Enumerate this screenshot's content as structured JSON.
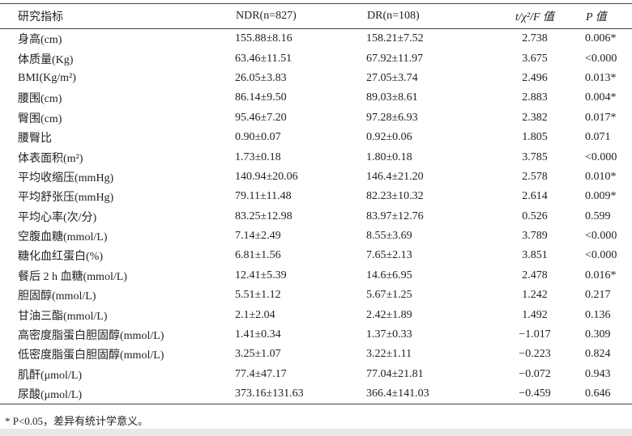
{
  "table": {
    "header": [
      "研究指标",
      "NDR(n=827)",
      "DR(n=108)",
      "t/χ²/F 值",
      "P 值"
    ],
    "rows": [
      [
        "身高(cm)",
        "155.88±8.16",
        "158.21±7.52",
        "2.738",
        "0.006*"
      ],
      [
        "体质量(Kg)",
        "63.46±11.51",
        "67.92±11.97",
        "3.675",
        "<0.000"
      ],
      [
        "BMI(Kg/m²)",
        "26.05±3.83",
        "27.05±3.74",
        "2.496",
        "0.013*"
      ],
      [
        "腰围(cm)",
        "86.14±9.50",
        "89.03±8.61",
        "2.883",
        "0.004*"
      ],
      [
        "臀围(cm)",
        "95.46±7.20",
        "97.28±6.93",
        "2.382",
        "0.017*"
      ],
      [
        "腰臀比",
        "0.90±0.07",
        "0.92±0.06",
        "1.805",
        "0.071"
      ],
      [
        "体表面积(m²)",
        "1.73±0.18",
        "1.80±0.18",
        "3.785",
        "<0.000"
      ],
      [
        "平均收缩压(mmHg)",
        "140.94±20.06",
        "146.4±21.20",
        "2.578",
        "0.010*"
      ],
      [
        "平均舒张压(mmHg)",
        "79.11±11.48",
        "82.23±10.32",
        "2.614",
        "0.009*"
      ],
      [
        "平均心率(次/分)",
        "83.25±12.98",
        "83.97±12.76",
        "0.526",
        "0.599"
      ],
      [
        "空腹血糖(mmol/L)",
        "7.14±2.49",
        "8.55±3.69",
        "3.789",
        "<0.000"
      ],
      [
        "糖化血红蛋白(%)",
        "6.81±1.56",
        "7.65±2.13",
        "3.851",
        "<0.000"
      ],
      [
        "餐后 2 h 血糖(mmol/L)",
        "12.41±5.39",
        "14.6±6.95",
        "2.478",
        "0.016*"
      ],
      [
        "胆固醇(mmol/L)",
        "5.51±1.12",
        "5.67±1.25",
        "1.242",
        "0.217"
      ],
      [
        "甘油三酯(mmol/L)",
        "2.1±2.04",
        "2.42±1.89",
        "1.492",
        "0.136"
      ],
      [
        "高密度脂蛋白胆固醇(mmol/L)",
        "1.41±0.34",
        "1.37±0.33",
        "−1.017",
        "0.309"
      ],
      [
        "低密度脂蛋白胆固醇(mmol/L)",
        "3.25±1.07",
        "3.22±1.11",
        "−0.223",
        "0.824"
      ],
      [
        "肌酐(μmol/L)",
        "77.4±47.17",
        "77.04±21.81",
        "−0.072",
        "0.943"
      ],
      [
        "尿酸(μmol/L)",
        "373.16±131.63",
        "366.4±141.03",
        "−0.459",
        "0.646"
      ]
    ],
    "footnote": "* P<0.05，差异有统计学意义。"
  }
}
